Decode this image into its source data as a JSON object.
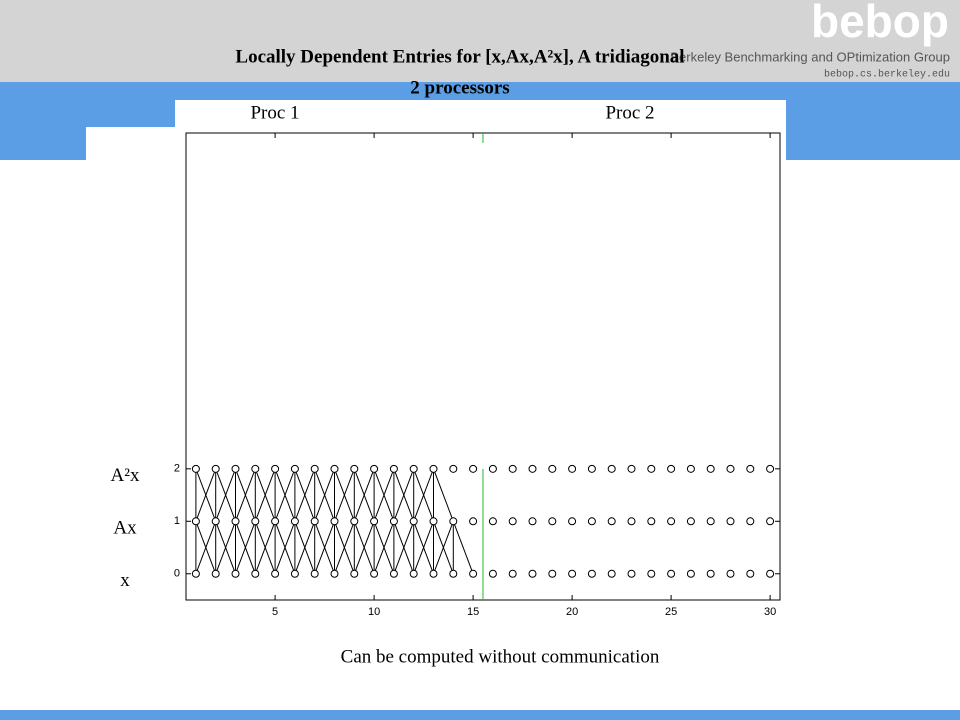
{
  "header": {
    "logo": "bebop",
    "group": "Berkeley Benchmarking and OPtimization Group",
    "url": "bebop.cs.berkeley.edu"
  },
  "chart_data": {
    "type": "dependency",
    "title": "Locally Dependent Entries for [x,Ax,A²x], A tridiagonal",
    "subtitle": "2 processors",
    "processors": [
      "Proc 1",
      "Proc 2"
    ],
    "divider": 15.5,
    "divider_color": "#22bb22",
    "caption": "Can be computed without communication",
    "series": [
      {
        "name": "x",
        "level": 0,
        "local_through": 15,
        "x": [
          1,
          2,
          3,
          4,
          5,
          6,
          7,
          8,
          9,
          10,
          11,
          12,
          13,
          14,
          15,
          16,
          17,
          18,
          19,
          20,
          21,
          22,
          23,
          24,
          25,
          26,
          27,
          28,
          29,
          30
        ]
      },
      {
        "name": "Ax",
        "level": 1,
        "local_through": 14,
        "x": [
          1,
          2,
          3,
          4,
          5,
          6,
          7,
          8,
          9,
          10,
          11,
          12,
          13,
          14,
          15,
          16,
          17,
          18,
          19,
          20,
          21,
          22,
          23,
          24,
          25,
          26,
          27,
          28,
          29,
          30
        ]
      },
      {
        "name": "A²x",
        "level": 2,
        "local_through": 13,
        "x": [
          1,
          2,
          3,
          4,
          5,
          6,
          7,
          8,
          9,
          10,
          11,
          12,
          13,
          14,
          15,
          16,
          17,
          18,
          19,
          20,
          21,
          22,
          23,
          24,
          25,
          26,
          27,
          28,
          29,
          30
        ]
      }
    ],
    "xlim": [
      0.5,
      30.5
    ],
    "ylim": [
      -0.5,
      8.4
    ],
    "xticks": [
      5,
      10,
      15,
      20,
      25,
      30
    ],
    "yticks": [
      0,
      1,
      2
    ]
  }
}
